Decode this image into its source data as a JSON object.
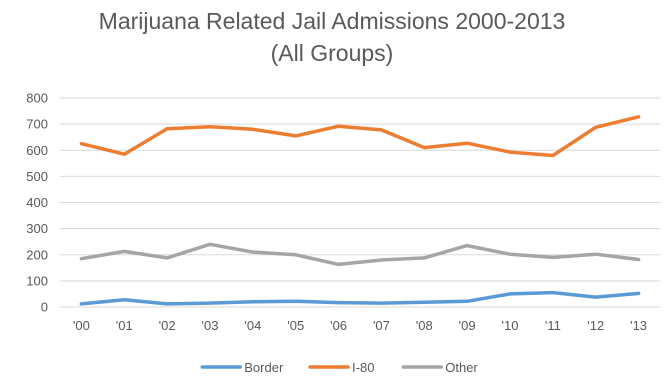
{
  "title_line1": "Marijuana Related Jail Admissions 2000-2013",
  "title_line2": "(All Groups)",
  "chart_data": {
    "type": "line",
    "categories": [
      "'00",
      "'01",
      "'02",
      "'03",
      "'04",
      "'05",
      "'06",
      "'07",
      "'08",
      "'09",
      "'10",
      "'11",
      "'12",
      "'13"
    ],
    "series": [
      {
        "name": "Border",
        "color": "#5b9bd5",
        "values": [
          12,
          28,
          12,
          15,
          20,
          22,
          17,
          15,
          18,
          22,
          50,
          55,
          38,
          52
        ]
      },
      {
        "name": "I-80",
        "color": "#ed7d31",
        "values": [
          625,
          585,
          682,
          690,
          680,
          655,
          692,
          678,
          610,
          627,
          593,
          580,
          688,
          728
        ]
      },
      {
        "name": "Other",
        "color": "#a5a5a5",
        "values": [
          185,
          213,
          188,
          240,
          210,
          200,
          163,
          180,
          188,
          235,
          202,
          190,
          202,
          182
        ]
      }
    ],
    "ylim": [
      0,
      800
    ],
    "yticks": [
      0,
      100,
      200,
      300,
      400,
      500,
      600,
      700,
      800
    ],
    "grid": true,
    "legend": "bottom"
  }
}
